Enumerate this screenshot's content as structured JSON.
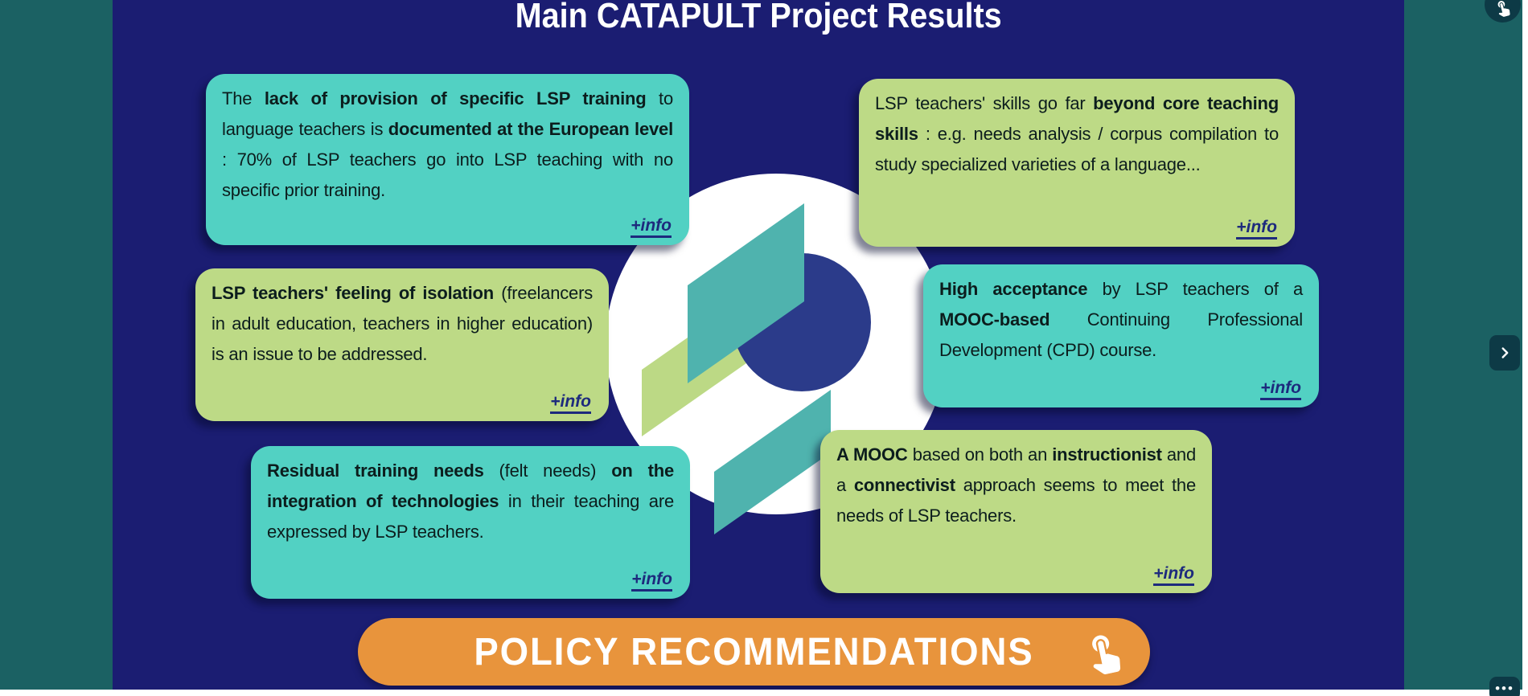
{
  "title": "Main CATAPULT Project Results",
  "cards": [
    {
      "variant": "teal",
      "text": "The **lack of provision of specific LSP training** to language teachers is **documented at the European level** : 70% of LSP teachers go into LSP teaching with no specific prior training.",
      "info_label": "+info"
    },
    {
      "variant": "green",
      "text": "LSP teachers' skills go far **beyond core teaching skills** : e.g. needs analysis / corpus compilation to study specialized varieties of a language...",
      "info_label": "+info"
    },
    {
      "variant": "green",
      "text": "**LSP teachers' feeling of isolation** (freelancers in adult education, teachers in higher education) is an issue to be addressed.",
      "info_label": "+info"
    },
    {
      "variant": "teal",
      "text": "**High acceptance** by LSP teachers of a **MOOC-based** Continuing Professional Development (CPD) course.",
      "info_label": "+info"
    },
    {
      "variant": "teal",
      "text": "**Residual training needs** (felt needs) **on the integration of technologies** in their teaching are expressed by LSP teachers.",
      "info_label": "+info"
    },
    {
      "variant": "green",
      "text": "**A MOOC** based on both an **instructionist** and a **connectivist** approach seems to meet the needs of LSP teachers.",
      "info_label": "+info"
    }
  ],
  "cta": {
    "label": "POLICY RECOMMENDATIONS",
    "icon": "tap-hand-icon"
  },
  "controls": {
    "interactive_badge_icon": "tap-hand-icon",
    "next_icon": "chevron-right-icon",
    "more_icon": "ellipsis-icon",
    "more_glyph": "•••"
  },
  "colors": {
    "background_navy": "#1b1d72",
    "frame_teal": "#1b6163",
    "card_teal": "#52d1c3",
    "card_green": "#bdda86",
    "card_text": "#0c1d1d",
    "info_link": "#1d2a7d",
    "cta_orange": "#e8943c",
    "cta_text": "#ffffff",
    "title_text": "#ffffff",
    "logo_teal": "#4fb3ae",
    "logo_green": "#bcd985",
    "logo_navy": "#2b3b8a",
    "control_dark": "#0d3a46",
    "page_white": "#ffffff"
  }
}
